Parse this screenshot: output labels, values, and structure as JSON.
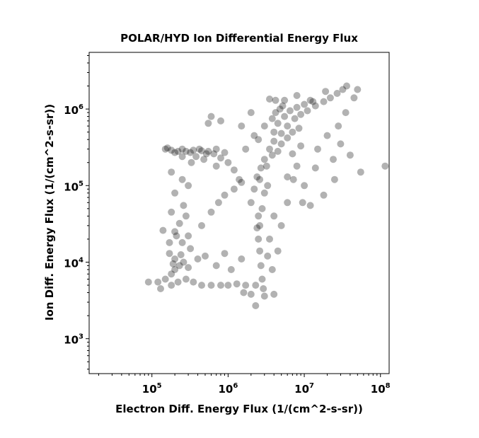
{
  "chart_data": {
    "type": "scatter",
    "title": "POLAR/HYD  Ion Differential Energy Flux",
    "xlabel": "Electron Diff. Energy Flux (1/(cm^2-s-sr))",
    "ylabel": "Ion Diff. Energy Flux (1/(cm^2-s-sr))",
    "xscale": "log",
    "yscale": "log",
    "xlim": [
      15000,
      130000000
    ],
    "ylim": [
      350,
      5500000
    ],
    "x_ticks": [
      {
        "base": "10",
        "exp": "5"
      },
      {
        "base": "10",
        "exp": "6"
      },
      {
        "base": "10",
        "exp": "7"
      },
      {
        "base": "10",
        "exp": "8"
      }
    ],
    "y_ticks": [
      {
        "base": "10",
        "exp": "3"
      },
      {
        "base": "10",
        "exp": "4"
      },
      {
        "base": "10",
        "exp": "5"
      },
      {
        "base": "10",
        "exp": "6"
      }
    ],
    "grid": false,
    "legend": "none",
    "marker_color": "#000000",
    "marker_opacity": 0.3,
    "series": [
      {
        "values": [
          [
            150000,
            300000
          ],
          [
            180000,
            290000
          ],
          [
            220000,
            280000
          ],
          [
            280000,
            280000
          ],
          [
            350000,
            290000
          ],
          [
            450000,
            285000
          ],
          [
            550000,
            280000
          ],
          [
            650000,
            260000
          ],
          [
            800000,
            230000
          ],
          [
            1000000,
            200000
          ],
          [
            1200000,
            160000
          ],
          [
            1400000,
            120000
          ],
          [
            160000,
            310000
          ],
          [
            200000,
            270000
          ],
          [
            250000,
            300000
          ],
          [
            320000,
            270000
          ],
          [
            420000,
            300000
          ],
          [
            520000,
            260000
          ],
          [
            700000,
            300000
          ],
          [
            900000,
            270000
          ],
          [
            2000000,
            60000
          ],
          [
            2200000,
            90000
          ],
          [
            2400000,
            130000
          ],
          [
            2700000,
            170000
          ],
          [
            3000000,
            220000
          ],
          [
            3500000,
            300000
          ],
          [
            4000000,
            380000
          ],
          [
            5000000,
            480000
          ],
          [
            6000000,
            600000
          ],
          [
            7500000,
            750000
          ],
          [
            9000000,
            850000
          ],
          [
            11000000,
            950000
          ],
          [
            14000000,
            1100000
          ],
          [
            18000000,
            1250000
          ],
          [
            22000000,
            1400000
          ],
          [
            27000000,
            1600000
          ],
          [
            32000000,
            1800000
          ],
          [
            36000000,
            2000000
          ],
          [
            4000000,
            500000
          ],
          [
            4500000,
            650000
          ],
          [
            5500000,
            800000
          ],
          [
            6500000,
            950000
          ],
          [
            8000000,
            1050000
          ],
          [
            10000000,
            1150000
          ],
          [
            13000000,
            1250000
          ],
          [
            2600000,
            120000
          ],
          [
            3200000,
            180000
          ],
          [
            3800000,
            250000
          ],
          [
            4500000,
            280000
          ],
          [
            5000000,
            350000
          ],
          [
            6000000,
            420000
          ],
          [
            7000000,
            500000
          ],
          [
            8500000,
            560000
          ],
          [
            2800000,
            6000
          ],
          [
            2700000,
            9000
          ],
          [
            2600000,
            14000
          ],
          [
            2500000,
            20000
          ],
          [
            2400000,
            28000
          ],
          [
            2500000,
            40000
          ],
          [
            2300000,
            5000
          ],
          [
            2900000,
            4500
          ],
          [
            2600000,
            30000
          ],
          [
            2800000,
            50000
          ],
          [
            3000000,
            80000
          ],
          [
            3300000,
            100000
          ],
          [
            120000,
            5500
          ],
          [
            150000,
            6000
          ],
          [
            180000,
            7000
          ],
          [
            200000,
            8000
          ],
          [
            230000,
            9000
          ],
          [
            260000,
            10000
          ],
          [
            180000,
            5000
          ],
          [
            220000,
            5500
          ],
          [
            280000,
            6000
          ],
          [
            350000,
            5500
          ],
          [
            450000,
            5000
          ],
          [
            600000,
            5000
          ],
          [
            800000,
            5000
          ],
          [
            1000000,
            5000
          ],
          [
            1300000,
            5200
          ],
          [
            1700000,
            5000
          ],
          [
            200000,
            11000
          ],
          [
            170000,
            13000
          ],
          [
            240000,
            12500
          ],
          [
            300000,
            8500
          ],
          [
            90000,
            5500
          ],
          [
            130000,
            4500
          ],
          [
            1600000,
            4000
          ],
          [
            2300000,
            2700
          ],
          [
            190000,
            9500
          ],
          [
            200000,
            25000
          ],
          [
            230000,
            32000
          ],
          [
            280000,
            40000
          ],
          [
            180000,
            45000
          ],
          [
            260000,
            55000
          ],
          [
            300000,
            22000
          ],
          [
            250000,
            18000
          ],
          [
            320000,
            15000
          ],
          [
            450000,
            30000
          ],
          [
            600000,
            45000
          ],
          [
            750000,
            60000
          ],
          [
            900000,
            75000
          ],
          [
            1200000,
            90000
          ],
          [
            1500000,
            110000
          ],
          [
            200000,
            80000
          ],
          [
            250000,
            120000
          ],
          [
            180000,
            150000
          ],
          [
            300000,
            100000
          ],
          [
            5500000,
            1300000
          ],
          [
            4200000,
            1300000
          ],
          [
            3500000,
            1350000
          ],
          [
            12000000,
            1300000
          ],
          [
            8000000,
            1500000
          ],
          [
            19000000,
            1700000
          ],
          [
            55000000,
            150000
          ],
          [
            115000000,
            180000
          ],
          [
            40000000,
            250000
          ],
          [
            30000000,
            350000
          ],
          [
            20000000,
            450000
          ],
          [
            15000000,
            300000
          ],
          [
            10000000,
            100000
          ],
          [
            6000000,
            60000
          ],
          [
            12000000,
            55000
          ],
          [
            18000000,
            75000
          ],
          [
            25000000,
            120000
          ],
          [
            4000000,
            40000
          ],
          [
            5000000,
            30000
          ],
          [
            3500000,
            20000
          ],
          [
            4500000,
            14000
          ],
          [
            3800000,
            8000
          ],
          [
            3300000,
            12000
          ],
          [
            600000,
            800000
          ],
          [
            800000,
            700000
          ],
          [
            550000,
            650000
          ],
          [
            2000000,
            900000
          ],
          [
            1500000,
            600000
          ],
          [
            2500000,
            400000
          ],
          [
            400000,
            11000
          ],
          [
            500000,
            12000
          ],
          [
            700000,
            9000
          ],
          [
            900000,
            13000
          ],
          [
            1100000,
            8000
          ],
          [
            1500000,
            11000
          ],
          [
            4000000,
            3800
          ],
          [
            3000000,
            3600
          ],
          [
            2000000,
            3800
          ],
          [
            170000,
            18000
          ],
          [
            210000,
            22000
          ],
          [
            140000,
            26000
          ],
          [
            480000,
            220000
          ],
          [
            380000,
            240000
          ],
          [
            250000,
            240000
          ],
          [
            330000,
            200000
          ],
          [
            700000,
            180000
          ],
          [
            1700000,
            300000
          ],
          [
            2200000,
            450000
          ],
          [
            3000000,
            600000
          ],
          [
            3800000,
            750000
          ],
          [
            4200000,
            900000
          ],
          [
            4800000,
            1000000
          ],
          [
            5200000,
            1100000
          ],
          [
            8000000,
            180000
          ],
          [
            6000000,
            130000
          ],
          [
            7000000,
            260000
          ],
          [
            9000000,
            330000
          ],
          [
            7200000,
            120000
          ],
          [
            9500000,
            60000
          ],
          [
            14000000,
            170000
          ],
          [
            24000000,
            220000
          ],
          [
            28000000,
            600000
          ],
          [
            35000000,
            900000
          ],
          [
            45000000,
            1400000
          ],
          [
            50000000,
            1800000
          ]
        ]
      }
    ]
  }
}
